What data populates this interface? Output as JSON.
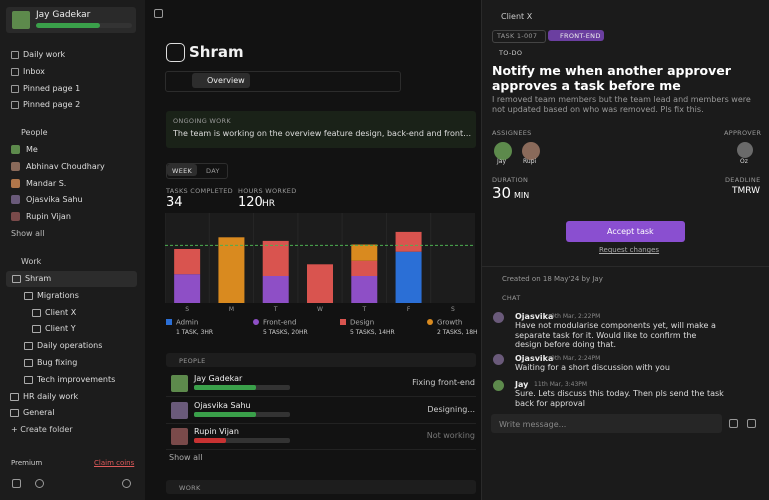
{
  "sidebar": {
    "user": "Jay Gadekar",
    "nav": [
      "Daily work",
      "Inbox",
      "Pinned page 1",
      "Pinned page 2"
    ],
    "people_header": "People",
    "people": [
      "Me",
      "Abhinav Choudhary",
      "Mandar S.",
      "Ojasvika Sahu",
      "Rupin Vijan"
    ],
    "show_all": "Show all",
    "work_header": "Work",
    "work": [
      "Shram",
      "Migrations",
      "Client X",
      "Client Y",
      "Daily operations",
      "Bug fixing",
      "Tech improvements",
      "HR daily work",
      "General"
    ],
    "create_folder": "Create folder",
    "premium": "Premium",
    "claim": "Claim coins"
  },
  "main": {
    "title": "Shram",
    "tab": "Overview",
    "ongoing_label": "ONGOING WORK",
    "ongoing_text": "The team is working on the overview feature design, back-end and front-end",
    "toggle": [
      "WEEK",
      "DAY"
    ],
    "stats": [
      {
        "label": "TASKS COMPLETED",
        "value": 34
      },
      {
        "label": "HOURS WORKED",
        "value": 120,
        "unit": "HR"
      }
    ],
    "people_header": "PEOPLE",
    "people": [
      {
        "name": "Jay Gadekar",
        "status": "Fixing front-end"
      },
      {
        "name": "Ojasvika Sahu",
        "status": "Designing..."
      },
      {
        "name": "Rupin Vijan",
        "status": "Not working"
      }
    ],
    "show_all": "Show all",
    "work_header": "WORK"
  },
  "chart_data": {
    "type": "bar",
    "stacked": true,
    "categories": [
      "S",
      "M",
      "T",
      "W",
      "T",
      "F",
      "S"
    ],
    "ylim": [
      0,
      10
    ],
    "reference_line": 6.4,
    "series": [
      {
        "name": "Admin",
        "detail": "1 TASK, 3HR",
        "color": "#2b6fd6",
        "values": [
          0,
          0,
          0,
          0,
          0,
          5.7,
          0
        ]
      },
      {
        "name": "Front-end",
        "detail": "5 TASKS, 20HR",
        "color": "#8e4fc6",
        "values": [
          3.2,
          0,
          3.0,
          0,
          3.0,
          0,
          0
        ]
      },
      {
        "name": "Design",
        "detail": "5 TASKS, 14HR",
        "color": "#d9544f",
        "values": [
          2.8,
          0,
          3.9,
          4.3,
          1.7,
          2.2,
          0
        ]
      },
      {
        "name": "Growth",
        "detail": "2 TASKS, 18HR",
        "color": "#d98a1f",
        "values": [
          0,
          7.3,
          0,
          0,
          1.8,
          0,
          0
        ]
      }
    ]
  },
  "panel": {
    "breadcrumb": "Client X",
    "task_id": "TASK 1-007",
    "tag": "FRONT-END",
    "status": "TO-DO",
    "title": "Notify me when another approver approves a task before me",
    "description": "I removed team members but the team lead and members were not updated based on who was removed. Pls fix this.",
    "assignees_label": "ASSIGNEES",
    "assignees": [
      "Jay",
      "Rupi"
    ],
    "approver_label": "APPROVER",
    "approver": "Oz",
    "duration_label": "DURATION",
    "duration": 30,
    "duration_unit": "MIN",
    "deadline_label": "DEADLINE",
    "deadline": "TMRW",
    "accept": "Accept task",
    "request": "Request changes",
    "created": "Created on 18 May'24 by Jay",
    "chat_label": "CHAT",
    "messages": [
      {
        "author": "Ojasvika",
        "time": "9th Mar, 2:22PM",
        "text": "Have not modularise components yet, will make a separate task for it. Would like to confirm the design before doing that."
      },
      {
        "author": "Ojasvika",
        "time": "9th Mar, 2:24PM",
        "text": "Waiting for a short discussion with you"
      },
      {
        "author": "Jay",
        "time": "11th Mar, 3:43PM",
        "text": "Sure. Lets discuss this today. Then pls send the task back for approval"
      }
    ],
    "input": "Write message..."
  }
}
